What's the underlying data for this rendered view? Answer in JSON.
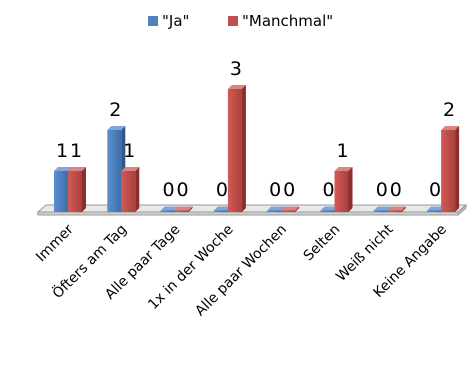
{
  "chart_data": {
    "type": "bar",
    "three_d": true,
    "categories": [
      "Immer",
      "Öfters am Tag",
      "Alle paar Tage",
      "1x in der Woche",
      "Alle paar Wochen",
      "Selten",
      "Weiß nicht",
      "Keine Angabe"
    ],
    "series": [
      {
        "name": "\"Ja\"",
        "values": [
          1,
          2,
          0,
          0,
          0,
          0,
          0,
          0
        ],
        "color": "#4F81BD"
      },
      {
        "name": "\"Manchmal\"",
        "values": [
          1,
          1,
          0,
          3,
          0,
          1,
          0,
          2
        ],
        "color": "#C0504D"
      }
    ],
    "data_labels": [
      "1",
      "1",
      "2",
      "1",
      "0",
      "0",
      "0",
      "3",
      "0",
      "0",
      "0",
      "1",
      "0",
      "0",
      "0",
      "2"
    ],
    "ylim": [
      0,
      3
    ],
    "grid": false,
    "legend_position": "top-center"
  }
}
